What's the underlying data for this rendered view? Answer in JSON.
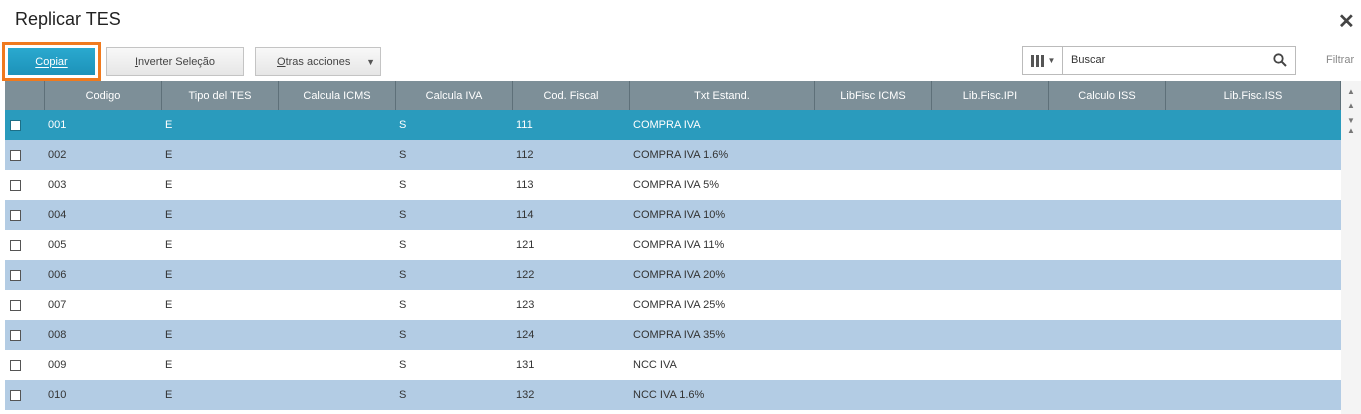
{
  "window": {
    "title": "Replicar TES"
  },
  "toolbar": {
    "copy_label": "Copiar",
    "invert_first": "I",
    "invert_rest": "nverter Seleção",
    "other_first": "O",
    "other_rest": "tras acciones"
  },
  "search": {
    "value": "Buscar",
    "filter_label": "Filtrar"
  },
  "grid": {
    "columns": [
      "Codigo",
      "Tipo del TES",
      "Calcula ICMS",
      "Calcula IVA",
      "Cod. Fiscal",
      "Txt Estand.",
      "LibFisc ICMS",
      "Lib.Fisc.IPI",
      "Calculo ISS",
      "Lib.Fisc.ISS"
    ],
    "rows": [
      [
        "001",
        "E",
        "",
        "S",
        "111",
        "COMPRA IVA",
        "",
        "",
        "",
        ""
      ],
      [
        "002",
        "E",
        "",
        "S",
        "112",
        "COMPRA IVA 1.6%",
        "",
        "",
        "",
        ""
      ],
      [
        "003",
        "E",
        "",
        "S",
        "113",
        "COMPRA IVA 5%",
        "",
        "",
        "",
        ""
      ],
      [
        "004",
        "E",
        "",
        "S",
        "114",
        "COMPRA IVA 10%",
        "",
        "",
        "",
        ""
      ],
      [
        "005",
        "E",
        "",
        "S",
        "121",
        "COMPRA IVA 11%",
        "",
        "",
        "",
        ""
      ],
      [
        "006",
        "E",
        "",
        "S",
        "122",
        "COMPRA IVA 20%",
        "",
        "",
        "",
        ""
      ],
      [
        "007",
        "E",
        "",
        "S",
        "123",
        "COMPRA IVA 25%",
        "",
        "",
        "",
        ""
      ],
      [
        "008",
        "E",
        "",
        "S",
        "124",
        "COMPRA IVA 35%",
        "",
        "",
        "",
        ""
      ],
      [
        "009",
        "E",
        "",
        "S",
        "131",
        "NCC IVA",
        "",
        "",
        "",
        ""
      ],
      [
        "010",
        "E",
        "",
        "S",
        "132",
        "NCC IVA 1.6%",
        "",
        "",
        "",
        ""
      ]
    ],
    "selected_row": 0
  },
  "colors": {
    "accent": "#2a9bbd",
    "header": "#7d8f98",
    "alt_row": "#b3cce4",
    "highlight": "#f07a1e"
  },
  "icons": [
    "close-icon",
    "columns-icon",
    "chevron-down-icon",
    "search-icon",
    "scroll-up-icon"
  ]
}
